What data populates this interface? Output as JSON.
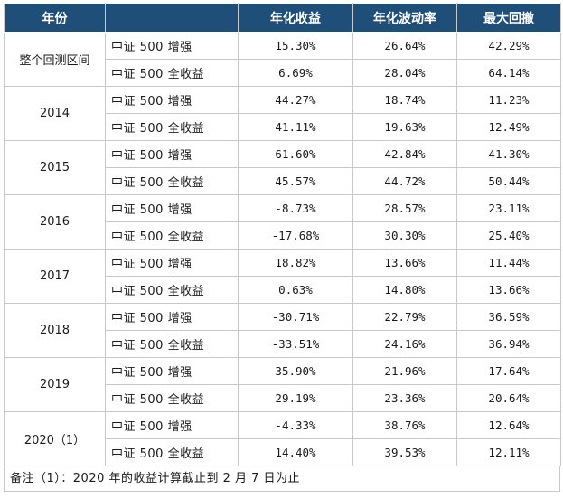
{
  "table": {
    "headers": {
      "year": "年份",
      "fund": "",
      "annual_return": "年化收益",
      "annual_volatility": "年化波动率",
      "max_drawdown": "最大回撤"
    },
    "groups": [
      {
        "period": "整个回测区间",
        "rows": [
          {
            "fund": "中证 500 增强",
            "annual_return": "15.30%",
            "annual_volatility": "26.64%",
            "max_drawdown": "42.29%"
          },
          {
            "fund": "中证 500 全收益",
            "annual_return": "6.69%",
            "annual_volatility": "28.04%",
            "max_drawdown": "64.14%"
          }
        ]
      },
      {
        "period": "2014",
        "rows": [
          {
            "fund": "中证 500 增强",
            "annual_return": "44.27%",
            "annual_volatility": "18.74%",
            "max_drawdown": "11.23%"
          },
          {
            "fund": "中证 500 全收益",
            "annual_return": "41.11%",
            "annual_volatility": "19.63%",
            "max_drawdown": "12.49%"
          }
        ]
      },
      {
        "period": "2015",
        "rows": [
          {
            "fund": "中证 500 增强",
            "annual_return": "61.60%",
            "annual_volatility": "42.84%",
            "max_drawdown": "41.30%"
          },
          {
            "fund": "中证 500 全收益",
            "annual_return": "45.57%",
            "annual_volatility": "44.72%",
            "max_drawdown": "50.44%"
          }
        ]
      },
      {
        "period": "2016",
        "rows": [
          {
            "fund": "中证 500 增强",
            "annual_return": "-8.73%",
            "annual_volatility": "28.57%",
            "max_drawdown": "23.11%"
          },
          {
            "fund": "中证 500 全收益",
            "annual_return": "-17.68%",
            "annual_volatility": "30.30%",
            "max_drawdown": "25.40%"
          }
        ]
      },
      {
        "period": "2017",
        "rows": [
          {
            "fund": "中证 500 增强",
            "annual_return": "18.82%",
            "annual_volatility": "13.66%",
            "max_drawdown": "11.44%"
          },
          {
            "fund": "中证 500 全收益",
            "annual_return": "0.63%",
            "annual_volatility": "14.80%",
            "max_drawdown": "13.66%"
          }
        ]
      },
      {
        "period": "2018",
        "rows": [
          {
            "fund": "中证 500 增强",
            "annual_return": "-30.71%",
            "annual_volatility": "22.79%",
            "max_drawdown": "36.59%"
          },
          {
            "fund": "中证 500 全收益",
            "annual_return": "-33.51%",
            "annual_volatility": "24.16%",
            "max_drawdown": "36.94%"
          }
        ]
      },
      {
        "period": "2019",
        "rows": [
          {
            "fund": "中证 500 增强",
            "annual_return": "35.90%",
            "annual_volatility": "21.96%",
            "max_drawdown": "17.64%"
          },
          {
            "fund": "中证 500 全收益",
            "annual_return": "29.19%",
            "annual_volatility": "23.36%",
            "max_drawdown": "20.64%"
          }
        ]
      },
      {
        "period": "2020（1）",
        "rows": [
          {
            "fund": "中证 500 增强",
            "annual_return": "-4.33%",
            "annual_volatility": "38.76%",
            "max_drawdown": "12.64%"
          },
          {
            "fund": "中证 500 全收益",
            "annual_return": "14.40%",
            "annual_volatility": "39.53%",
            "max_drawdown": "12.11%"
          }
        ]
      }
    ],
    "footnote": "备注（1）：2020 年的收益计算截止到 2 月 7 日为止"
  },
  "colors": {
    "header_bg": "#1f4e79",
    "header_text": "#ffffff",
    "grid_line": "#c9c9c9"
  }
}
